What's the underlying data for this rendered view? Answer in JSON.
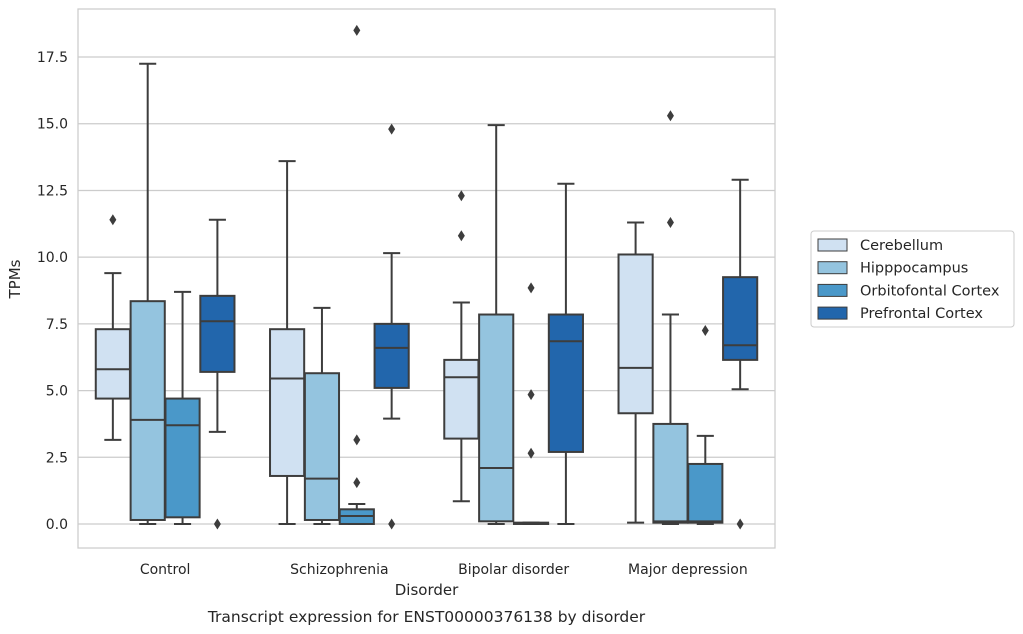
{
  "caption": "Transcript expression for ENST00000376138 by disorder",
  "chart_data": {
    "type": "box",
    "xlabel": "Disorder",
    "ylabel": "TPMs",
    "ylim": [
      -0.9,
      19.3
    ],
    "yticks": [
      0.0,
      2.5,
      5.0,
      7.5,
      10.0,
      12.5,
      15.0,
      17.5
    ],
    "ytick_labels": [
      "0.0",
      "2.5",
      "5.0",
      "7.5",
      "10.0",
      "12.5",
      "15.0",
      "17.5"
    ],
    "grid": "horizontal",
    "legend_placement": "right",
    "categories": [
      "Control",
      "Schizophrenia",
      "Bipolar disorder",
      "Major depression"
    ],
    "series": [
      {
        "name": "Cerebellum",
        "color": "#d0e1f2",
        "boxes": [
          {
            "whisker_low": 3.15,
            "q1": 4.7,
            "median": 5.8,
            "q3": 7.3,
            "whisker_high": 9.4,
            "outliers": [
              11.4
            ]
          },
          {
            "whisker_low": 0.0,
            "q1": 1.8,
            "median": 5.45,
            "q3": 7.3,
            "whisker_high": 13.6,
            "outliers": []
          },
          {
            "whisker_low": 0.85,
            "q1": 3.2,
            "median": 5.5,
            "q3": 6.15,
            "whisker_high": 8.3,
            "outliers": [
              10.8,
              12.3
            ]
          },
          {
            "whisker_low": 0.05,
            "q1": 4.15,
            "median": 5.85,
            "q3": 10.1,
            "whisker_high": 11.3,
            "outliers": []
          }
        ]
      },
      {
        "name": "Hipppocampus",
        "color": "#94c4df",
        "boxes": [
          {
            "whisker_low": 0.0,
            "q1": 0.15,
            "median": 3.9,
            "q3": 8.35,
            "whisker_high": 17.25,
            "outliers": []
          },
          {
            "whisker_low": 0.0,
            "q1": 0.15,
            "median": 1.7,
            "q3": 5.65,
            "whisker_high": 8.1,
            "outliers": []
          },
          {
            "whisker_low": 0.0,
            "q1": 0.1,
            "median": 2.1,
            "q3": 7.85,
            "whisker_high": 14.95,
            "outliers": []
          },
          {
            "whisker_low": 0.0,
            "q1": 0.05,
            "median": 0.1,
            "q3": 3.75,
            "whisker_high": 7.85,
            "outliers": [
              11.3,
              15.3
            ]
          }
        ]
      },
      {
        "name": "Orbitofontal Cortex",
        "color": "#4a98c9",
        "boxes": [
          {
            "whisker_low": 0.0,
            "q1": 0.25,
            "median": 3.7,
            "q3": 4.7,
            "whisker_high": 8.7,
            "outliers": []
          },
          {
            "whisker_low": 0.0,
            "q1": 0.0,
            "median": 0.3,
            "q3": 0.55,
            "whisker_high": 0.75,
            "outliers": [
              1.55,
              3.15,
              18.5
            ]
          },
          {
            "whisker_low": 0.0,
            "q1": 0.0,
            "median": 0.02,
            "q3": 0.05,
            "whisker_high": 0.05,
            "outliers": [
              2.65,
              4.85,
              8.85
            ]
          },
          {
            "whisker_low": 0.0,
            "q1": 0.05,
            "median": 0.1,
            "q3": 2.25,
            "whisker_high": 3.3,
            "outliers": [
              7.25
            ]
          }
        ]
      },
      {
        "name": "Prefrontal Cortex",
        "color": "#2266ac",
        "boxes": [
          {
            "whisker_low": 3.45,
            "q1": 5.7,
            "median": 7.6,
            "q3": 8.55,
            "whisker_high": 11.4,
            "outliers": [
              0.0
            ]
          },
          {
            "whisker_low": 3.95,
            "q1": 5.1,
            "median": 6.6,
            "q3": 7.5,
            "whisker_high": 10.15,
            "outliers": [
              0.0,
              14.8
            ]
          },
          {
            "whisker_low": 0.0,
            "q1": 2.7,
            "median": 6.85,
            "q3": 7.85,
            "whisker_high": 12.75,
            "outliers": []
          },
          {
            "whisker_low": 5.05,
            "q1": 6.15,
            "median": 6.7,
            "q3": 9.25,
            "whisker_high": 12.9,
            "outliers": [
              0.0
            ]
          }
        ]
      }
    ]
  }
}
